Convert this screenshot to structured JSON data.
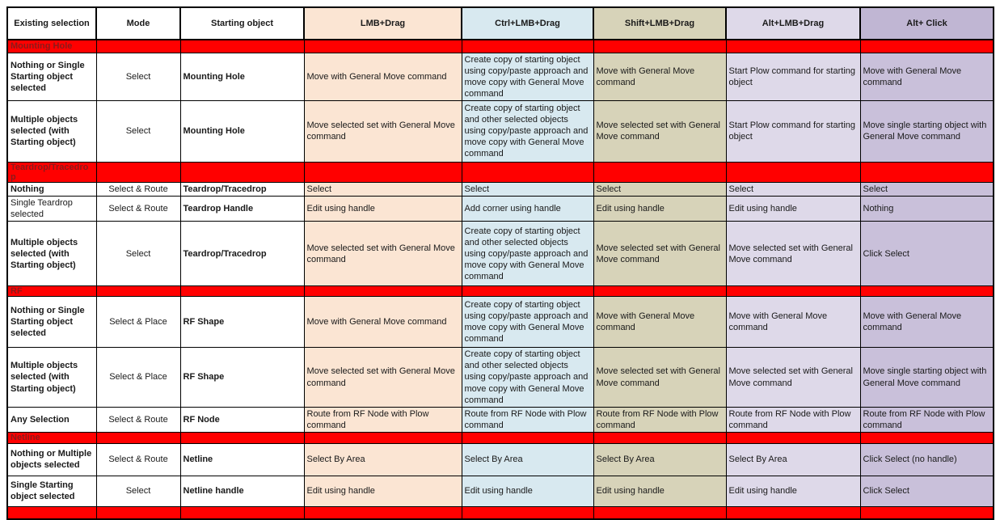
{
  "table": {
    "columns": [
      {
        "label": "Existing selection",
        "header_bg": "#ffffff",
        "cell_bg": "#ffffff"
      },
      {
        "label": "Mode",
        "header_bg": "#ffffff",
        "cell_bg": "#ffffff"
      },
      {
        "label": "Starting object",
        "header_bg": "#ffffff",
        "cell_bg": "#ffffff"
      },
      {
        "label": "LMB+Drag",
        "header_bg": "#fbe5d3",
        "cell_bg": "#fbe5d3"
      },
      {
        "label": "Ctrl+LMB+Drag",
        "header_bg": "#d8e9f0",
        "cell_bg": "#d8e9f0"
      },
      {
        "label": "Shift+LMB+Drag",
        "header_bg": "#d7d3b9",
        "cell_bg": "#d7d3b9"
      },
      {
        "label": "Alt+LMB+Drag",
        "header_bg": "#ded9e9",
        "cell_bg": "#ded9e9"
      },
      {
        "label": "Alt+ Click",
        "header_bg": "#c0b6d3",
        "cell_bg": "#c9c0da"
      }
    ],
    "rows": [
      {
        "type": "section",
        "label": "Mounting Hole"
      },
      {
        "type": "data",
        "cells": [
          "Nothing or Single Starting object selected",
          "Select",
          "Mounting Hole",
          "Move with General Move command",
          "Create copy of starting object using copy/paste approach and move copy with General Move command",
          "Move with General Move command",
          "Start Plow command for starting object",
          "Move with General Move command"
        ]
      },
      {
        "type": "data",
        "cells": [
          "Multiple objects selected (with Starting object)",
          "Select",
          "Mounting Hole",
          "Move selected set with General Move command",
          "Create copy of starting object and other selected objects using copy/paste approach and move copy with General Move command",
          "Move selected set with General Move command",
          "Start Plow command for starting object",
          "Move single starting object with General Move command"
        ]
      },
      {
        "type": "section",
        "label": "Teardrop/Tracedrop"
      },
      {
        "type": "data",
        "cells": [
          "Nothing",
          "Select & Route",
          "Teardrop/Tracedrop",
          "Select",
          "Select",
          "Select",
          "Select",
          "Select"
        ]
      },
      {
        "type": "data",
        "first_plain": true,
        "cells": [
          "Single Teardrop selected",
          "Select & Route",
          "Teardrop Handle",
          "Edit using handle",
          "Add corner using handle",
          "Edit using handle",
          "Edit using handle",
          "Nothing"
        ]
      },
      {
        "type": "data",
        "cells": [
          "Multiple objects selected (with Starting object)",
          "Select",
          "Teardrop/Tracedrop",
          "Move selected set with General Move command",
          "Create copy of starting object and other selected objects using copy/paste approach and move copy with General Move command",
          "Move selected set with General Move command",
          "Move selected set with General Move command",
          "Click Select"
        ]
      },
      {
        "type": "section",
        "label": "RF"
      },
      {
        "type": "data",
        "cells": [
          "Nothing or Single Starting object selected",
          "Select & Place",
          "RF Shape",
          "Move with General Move command",
          "Create copy of starting object using copy/paste approach and move copy with General Move command",
          "Move with General Move command",
          "Move with General Move command",
          "Move with General Move command"
        ]
      },
      {
        "type": "data",
        "cells": [
          "Multiple objects selected (with Starting object)",
          "Select & Place",
          "RF Shape",
          "Move selected set with General Move command",
          "Create copy of starting object and other selected objects using copy/paste approach and move copy with General Move command",
          "Move selected set with General Move command",
          "Move selected set with General Move command",
          "Move single starting object with General Move command"
        ]
      },
      {
        "type": "data",
        "cells": [
          "Any Selection",
          "Select & Route",
          "RF Node",
          "Route from RF Node with Plow command",
          "Route from RF Node with Plow command",
          "Route from RF Node with Plow command",
          "Route from RF Node with Plow command",
          "Route from RF Node with Plow command"
        ]
      },
      {
        "type": "section",
        "label": "Netline"
      },
      {
        "type": "data",
        "cells": [
          "Nothing or Multiple objects selected",
          "Select & Route",
          "Netline",
          "Select By Area",
          "Select By Area",
          "Select By Area",
          "Select By Area",
          "Click Select (no handle)"
        ]
      },
      {
        "type": "data",
        "cells": [
          "Single Starting object selected",
          "Select",
          "Netline handle",
          "Edit using handle",
          "Edit using handle",
          "Edit using handle",
          "Edit using handle",
          "Click Select"
        ]
      },
      {
        "type": "spacer"
      }
    ],
    "colors": {
      "section_bg": "#ff0000",
      "section_text": "#8b1a1a",
      "border": "#000000"
    }
  }
}
